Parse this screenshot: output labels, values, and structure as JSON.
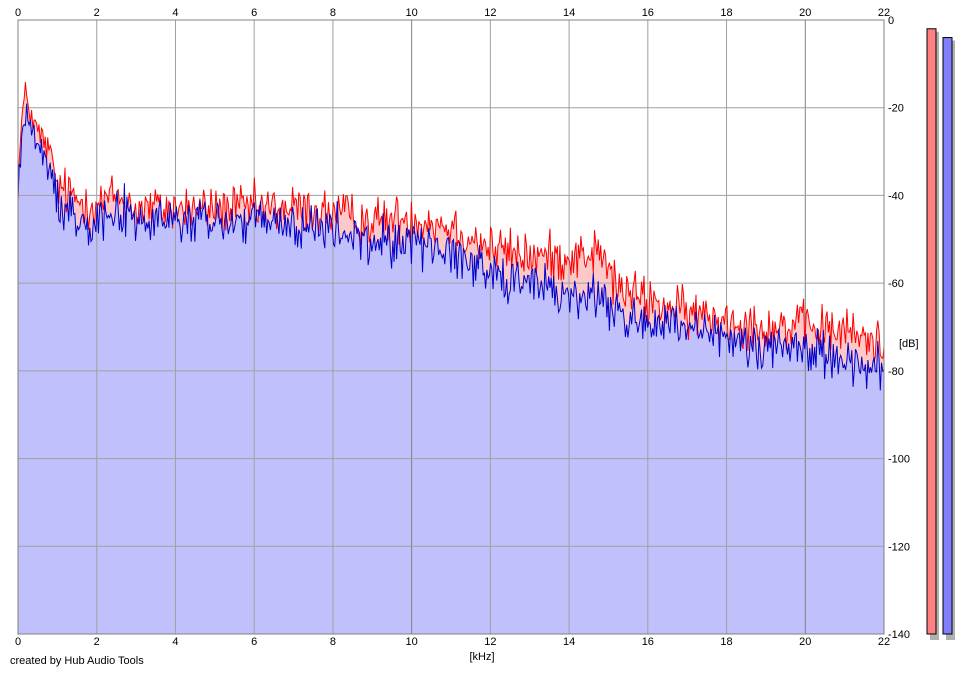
{
  "credit_text": "created by Hub Audio Tools",
  "chart_data": {
    "type": "area",
    "x_unit": "[kHz]",
    "y_unit": "[dB]",
    "xlim": [
      0,
      22
    ],
    "ylim": [
      -140,
      0
    ],
    "x_ticks": [
      0,
      2,
      4,
      6,
      8,
      10,
      12,
      14,
      16,
      18,
      20,
      22
    ],
    "y_ticks": [
      0,
      -20,
      -40,
      -60,
      -80,
      -100,
      -120,
      -140
    ],
    "grid": true,
    "colors": {
      "fill": "#c0c0fc",
      "fill_red_excess": "#fcc8c8",
      "series_red": "#ff0000",
      "series_blue": "#0000c8",
      "meter_red": "#ff8080",
      "meter_blue": "#8080ff",
      "grid": "#a0a0a0",
      "grid_major": "#808080"
    },
    "series": [
      {
        "channel": "red",
        "x": [
          0,
          0.1,
          0.2,
          0.3,
          0.4,
          0.6,
          0.8,
          1.0,
          1.5,
          2.0,
          2.5,
          3.0,
          4.0,
          5.0,
          6.0,
          7.0,
          8.0,
          9.0,
          10.0,
          11.0,
          12.0,
          13.0,
          14.0,
          14.8,
          15.2,
          16.0,
          17.0,
          18.0,
          19.0,
          20.0,
          21.0,
          22.0
        ],
        "values": [
          -38,
          -22,
          -17,
          -20,
          -24,
          -27,
          -30,
          -38,
          -41,
          -42,
          -40,
          -43,
          -43,
          -43,
          -43,
          -43,
          -44,
          -46,
          -45,
          -47,
          -52,
          -54,
          -54,
          -53,
          -61,
          -64,
          -67,
          -68,
          -70,
          -70,
          -71,
          -74
        ]
      },
      {
        "channel": "blue",
        "x": [
          0,
          0.1,
          0.2,
          0.3,
          0.4,
          0.6,
          0.8,
          1.0,
          1.5,
          2.0,
          2.5,
          3.0,
          4.0,
          5.0,
          6.0,
          7.0,
          8.0,
          9.0,
          10.0,
          11.0,
          12.0,
          13.0,
          14.0,
          14.8,
          15.2,
          16.0,
          17.0,
          18.0,
          19.0,
          20.0,
          21.0,
          22.0
        ],
        "values": [
          -40,
          -26,
          -21,
          -23,
          -27,
          -31,
          -34,
          -41,
          -45,
          -45,
          -43,
          -46,
          -46,
          -46,
          -46,
          -47,
          -48,
          -51,
          -50,
          -53,
          -57,
          -60,
          -63,
          -63,
          -67,
          -69,
          -71,
          -73,
          -74,
          -75,
          -77,
          -80
        ]
      }
    ],
    "meters": [
      {
        "channel": "red",
        "level_db": -2
      },
      {
        "channel": "blue",
        "level_db": -4
      }
    ]
  }
}
